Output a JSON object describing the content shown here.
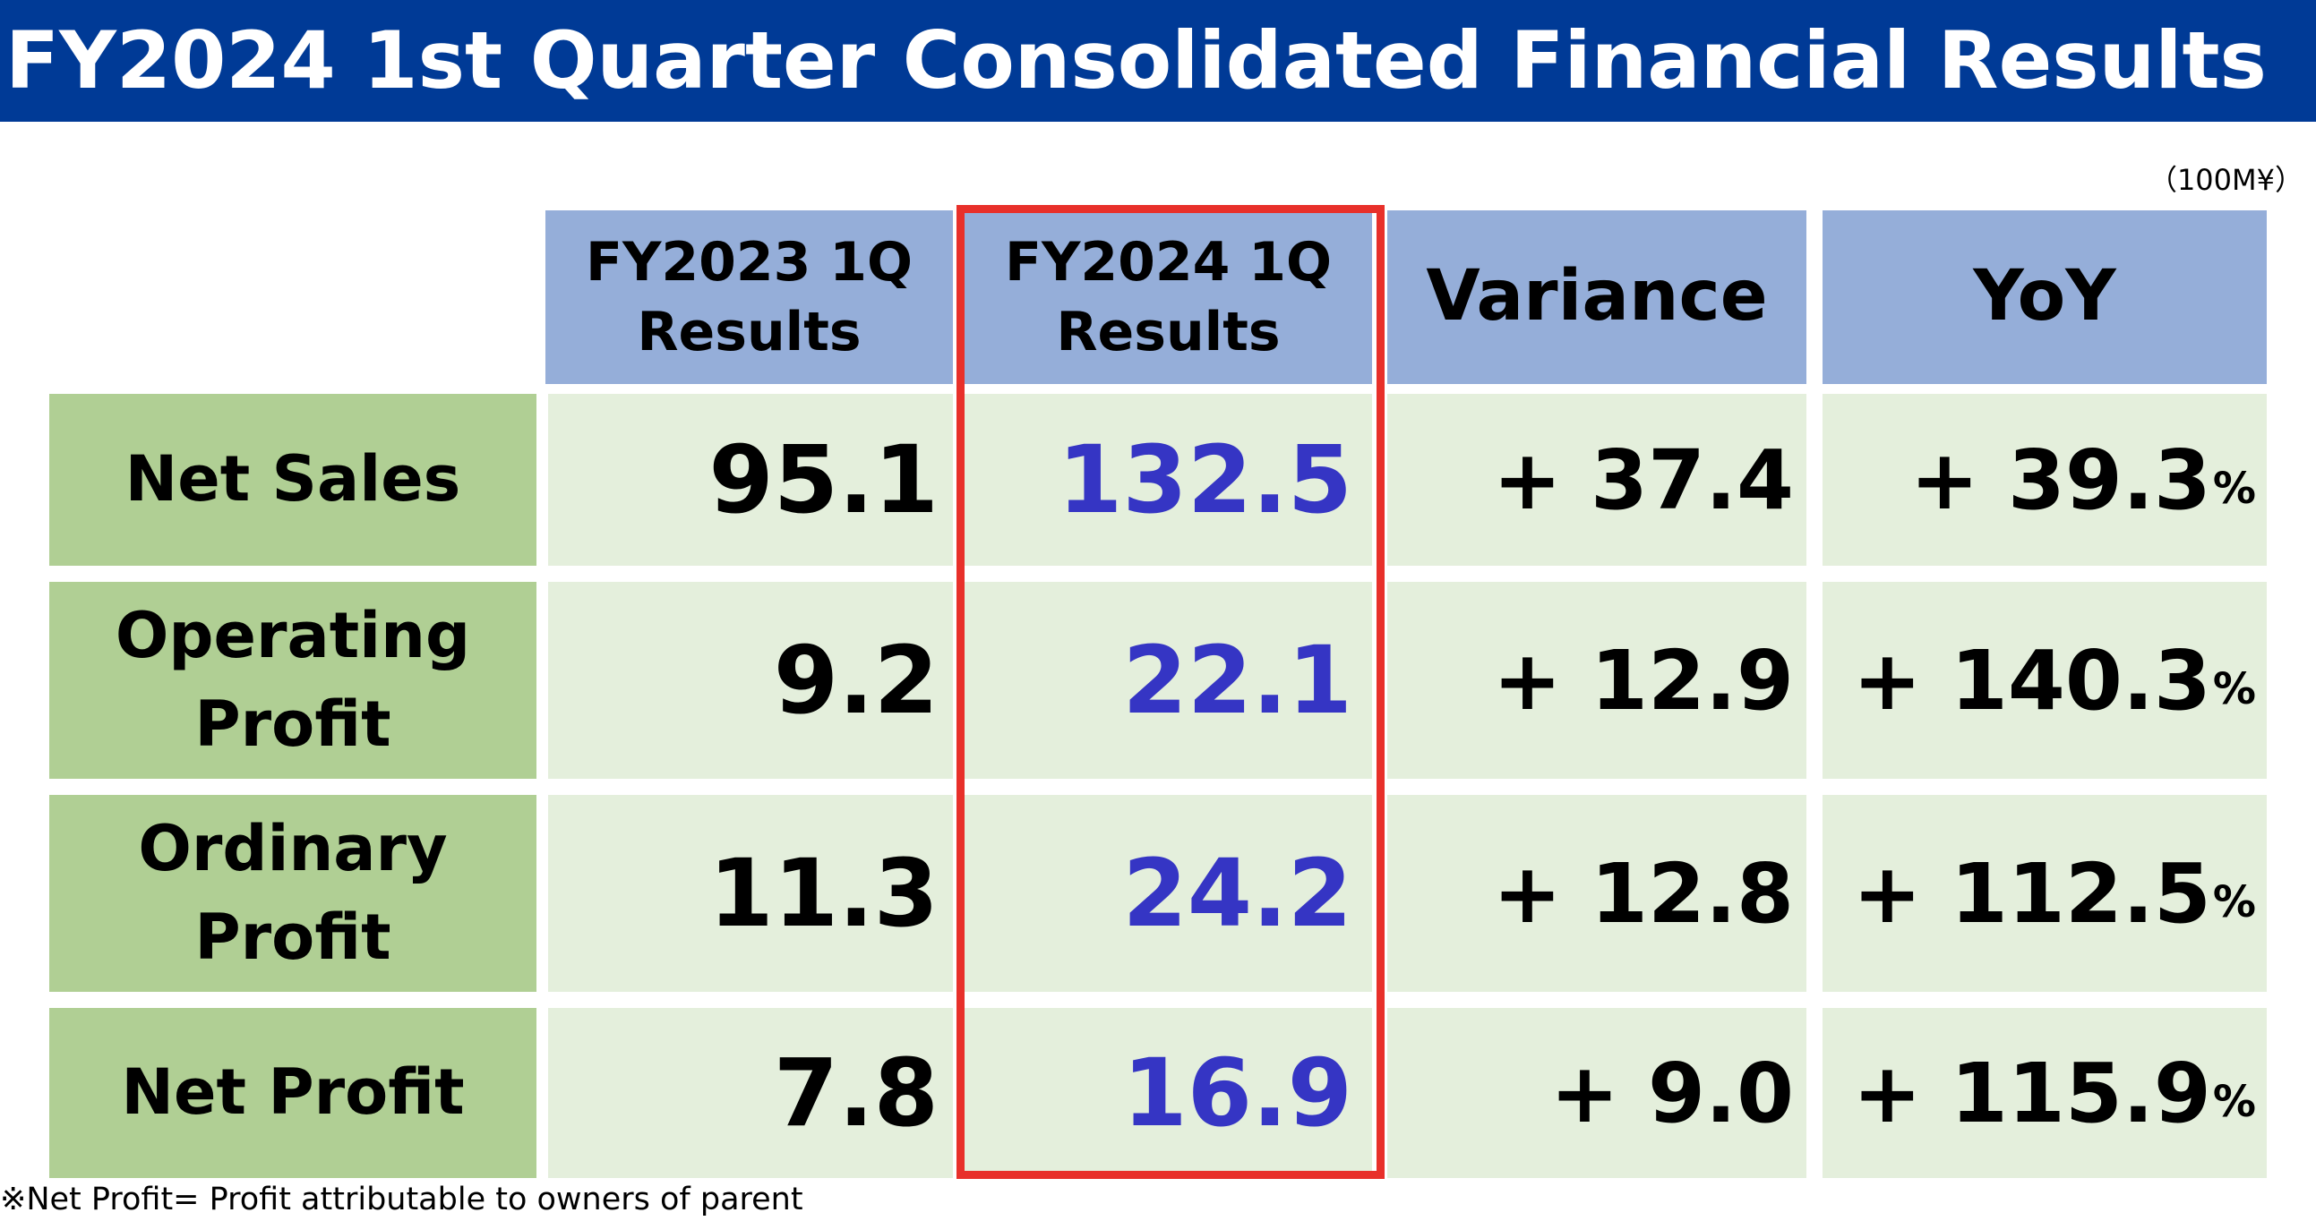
{
  "title": "FY2024 1st Quarter Consolidated Financial Results",
  "unit": "（100M¥）",
  "columns": {
    "prev": "FY2023 1Q\nResults",
    "curr": "FY2024 1Q\nResults",
    "variance": "Variance",
    "yoy": "YoY"
  },
  "rows": [
    {
      "label": "Net Sales",
      "prev": "95.1",
      "curr": "132.5",
      "variance": "+ 37.4",
      "yoy": "+ 39.3",
      "yoy_unit": "%"
    },
    {
      "label": "Operating\nProfit",
      "prev": "9.2",
      "curr": "22.1",
      "variance": "+ 12.9",
      "yoy": "+ 140.3",
      "yoy_unit": "%"
    },
    {
      "label": "Ordinary\nProfit",
      "prev": "11.3",
      "curr": "24.2",
      "variance": "+ 12.8",
      "yoy": "+ 112.5",
      "yoy_unit": "%"
    },
    {
      "label": "Net Profit",
      "prev": "7.8",
      "curr": "16.9",
      "variance": "+ 9.0",
      "yoy": "+ 115.9",
      "yoy_unit": "%"
    }
  ],
  "footnote": "※Net Profit= Profit attributable to owners of parent",
  "colors": {
    "title_bg": "#003a96",
    "header_bg": "#95aed9",
    "label_bg": "#b0cf94",
    "cell_bg": "#e4efdc",
    "highlight_border": "#e8302a",
    "highlight_text": "#3535c4"
  }
}
